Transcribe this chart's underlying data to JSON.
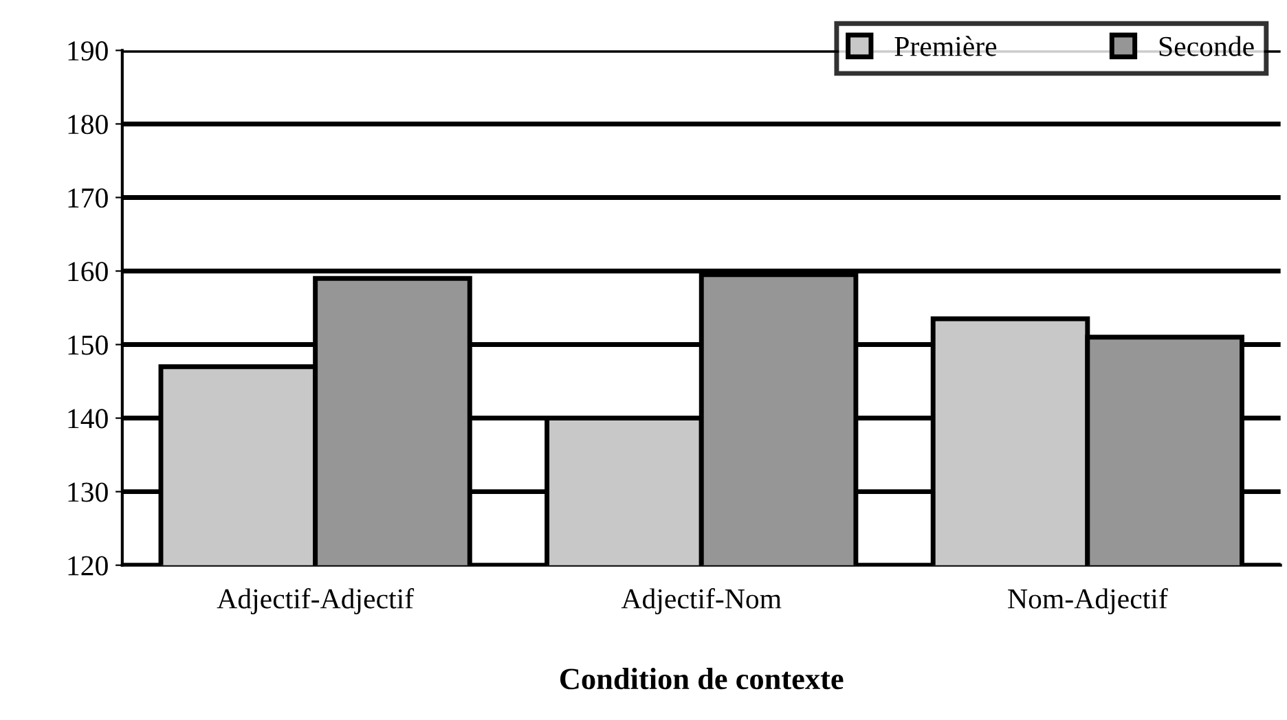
{
  "chart_data": {
    "type": "bar",
    "xlabel": "Condition de contexte",
    "categories": [
      "Adjectif-Adjectif",
      "Adjectif-Nom",
      "Nom-Adjectif"
    ],
    "series": [
      {
        "name": "Première",
        "color": "#c8c8c8",
        "values": [
          147,
          140,
          153.5
        ]
      },
      {
        "name": "Seconde",
        "color": "#969696",
        "values": [
          159,
          159.5,
          151
        ]
      }
    ],
    "ylim": [
      120,
      190
    ],
    "yticks": [
      120,
      130,
      140,
      150,
      160,
      170,
      180,
      190
    ],
    "grid": "y",
    "legend": "top right"
  }
}
